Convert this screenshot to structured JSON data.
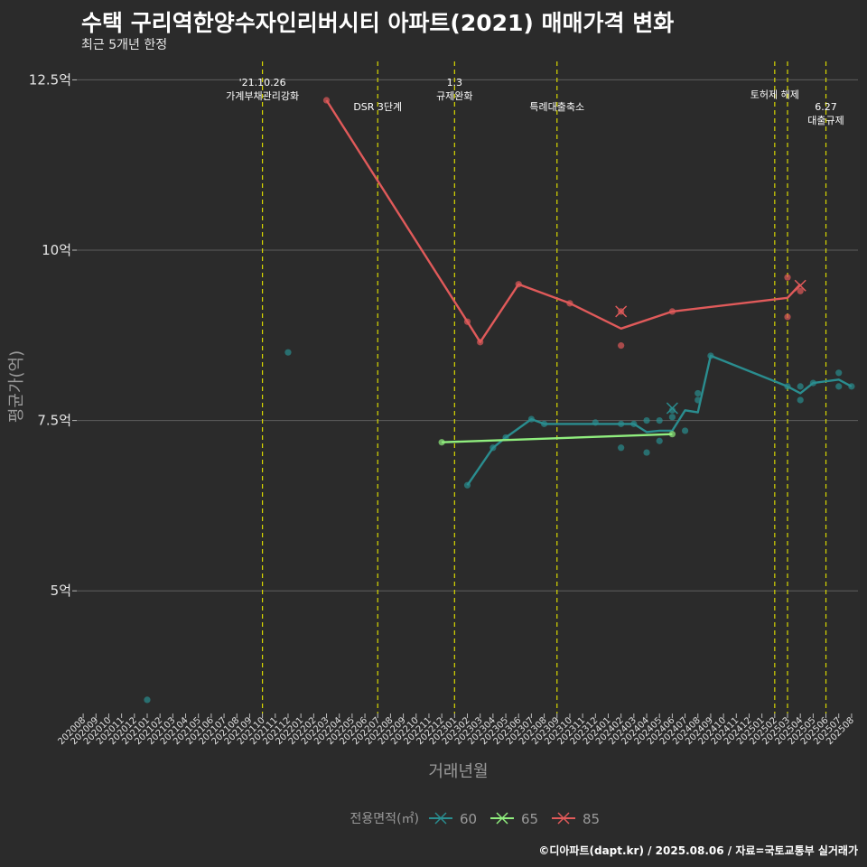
{
  "title": "수택 구리역한양수자인리버시티 아파트(2021) 매매가격 변화",
  "subtitle": "최근 5개년 한정",
  "caption": "©디아파트(dapt.kr) / 2025.08.06 / 자료=국토교통부 실거래가",
  "chart_data": {
    "type": "line",
    "xlabel": "거래년월",
    "ylabel": "평균가(억)",
    "ylim": [
      3.2,
      12.85
    ],
    "yticks": [
      {
        "value": 5,
        "label": "5억"
      },
      {
        "value": 7.5,
        "label": "7.5억"
      },
      {
        "value": 10,
        "label": "10억"
      },
      {
        "value": 12.5,
        "label": "12.5억"
      }
    ],
    "categories": [
      "202008",
      "202009",
      "202010",
      "202011",
      "202012",
      "202101",
      "202102",
      "202103",
      "202104",
      "202105",
      "202106",
      "202107",
      "202108",
      "202109",
      "202110",
      "202111",
      "202112",
      "202201",
      "202202",
      "202203",
      "202204",
      "202205",
      "202206",
      "202207",
      "202208",
      "202209",
      "202210",
      "202211",
      "202212",
      "202301",
      "202302",
      "202303",
      "202304",
      "202305",
      "202306",
      "202307",
      "202308",
      "202309",
      "202310",
      "202311",
      "202312",
      "202401",
      "202402",
      "202403",
      "202404",
      "202405",
      "202406",
      "202407",
      "202408",
      "202409",
      "202410",
      "202411",
      "202412",
      "202501",
      "202502",
      "202503",
      "202504",
      "202505",
      "202506",
      "202507",
      "202508"
    ],
    "events": [
      {
        "x": 14,
        "label": "'21.10.26\n가계부채관리강화",
        "row": 0
      },
      {
        "x": 23,
        "label": "DSR 3단계",
        "row": 1
      },
      {
        "x": 29,
        "label": "1.3\n규제완화",
        "row": 0
      },
      {
        "x": 37,
        "label": "특례대출축소",
        "row": 1
      },
      {
        "x": 54,
        "label": "토허제 해제",
        "row": 0.5
      },
      {
        "x": 55,
        "label": "",
        "row": 0
      },
      {
        "x": 58,
        "label": "6.27\n대출규제",
        "row": 1
      }
    ],
    "legend_title": "전용면적(㎡)",
    "series": [
      {
        "name": "60",
        "color": "#2a8d8f",
        "line": [
          [
            30,
            6.55
          ],
          [
            32,
            7.1
          ],
          [
            33,
            7.25
          ],
          [
            35,
            7.52
          ],
          [
            36,
            7.45
          ],
          [
            43,
            7.45
          ],
          [
            44,
            7.33
          ],
          [
            45,
            7.35
          ],
          [
            46,
            7.35
          ],
          [
            47,
            7.65
          ],
          [
            48,
            7.62
          ],
          [
            49,
            8.45
          ],
          [
            55,
            8.0
          ],
          [
            56,
            7.9
          ],
          [
            57,
            8.05
          ],
          [
            59,
            8.1
          ],
          [
            60,
            8.0
          ]
        ],
        "points": [
          [
            5,
            3.4
          ],
          [
            16,
            8.5
          ],
          [
            30,
            6.55
          ],
          [
            32,
            7.1
          ],
          [
            33,
            7.25
          ],
          [
            35,
            7.52
          ],
          [
            36,
            7.45
          ],
          [
            40,
            7.47
          ],
          [
            42,
            7.45
          ],
          [
            42,
            7.1
          ],
          [
            43,
            7.45
          ],
          [
            44,
            7.03
          ],
          [
            44,
            7.5
          ],
          [
            45,
            7.2
          ],
          [
            45,
            7.5
          ],
          [
            46,
            7.55
          ],
          [
            46,
            7.65
          ],
          [
            47,
            7.35
          ],
          [
            48,
            7.8
          ],
          [
            48,
            7.9
          ],
          [
            49,
            8.45
          ],
          [
            55,
            8.0
          ],
          [
            56,
            8.0
          ],
          [
            56,
            7.8
          ],
          [
            57,
            8.05
          ],
          [
            59,
            8.2
          ],
          [
            59,
            8.0
          ],
          [
            60,
            8.0
          ]
        ],
        "crosses": [
          [
            46,
            7.68
          ]
        ]
      },
      {
        "name": "65",
        "color": "#90ee7e",
        "line": [
          [
            28,
            7.18
          ],
          [
            46,
            7.3
          ]
        ],
        "points": [
          [
            28,
            7.18
          ],
          [
            46,
            7.3
          ]
        ],
        "crosses": []
      },
      {
        "name": "85",
        "color": "#e05a5a",
        "line": [
          [
            19,
            12.2
          ],
          [
            30,
            8.95
          ],
          [
            31,
            8.65
          ],
          [
            34,
            9.5
          ],
          [
            38,
            9.22
          ],
          [
            42,
            8.85
          ],
          [
            46,
            9.1
          ],
          [
            55,
            9.3
          ],
          [
            56,
            9.5
          ]
        ],
        "points": [
          [
            19,
            12.2
          ],
          [
            30,
            8.95
          ],
          [
            31,
            8.65
          ],
          [
            34,
            9.5
          ],
          [
            38,
            9.22
          ],
          [
            42,
            9.1
          ],
          [
            42,
            8.6
          ],
          [
            46,
            9.1
          ],
          [
            55,
            9.6
          ],
          [
            55,
            9.02
          ],
          [
            56,
            9.4
          ]
        ],
        "crosses": [
          [
            42,
            9.1
          ],
          [
            56,
            9.48
          ]
        ]
      }
    ]
  }
}
